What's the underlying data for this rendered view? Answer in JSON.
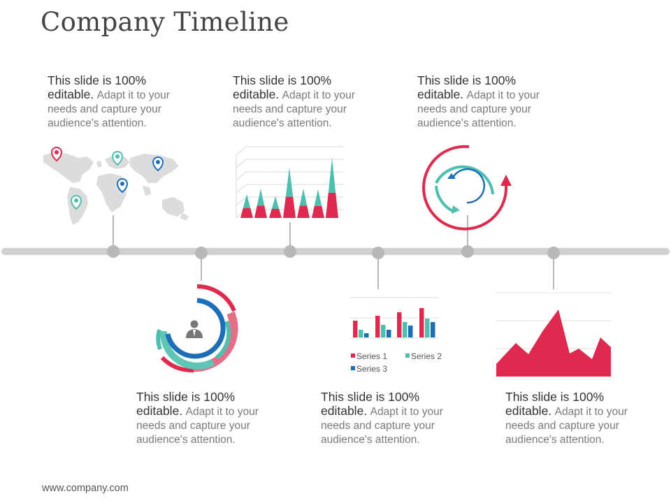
{
  "title": "Company Timeline",
  "footer": "www.company.com",
  "blocks": [
    {
      "head": "This slide is 100%",
      "bold": "editable.",
      "lead": "Adapt it to your",
      "line3": "needs and capture your",
      "line4": "audience's attention."
    },
    {
      "head": "This slide is 100%",
      "bold": "editable.",
      "lead": "Adapt it to your",
      "line3": "needs and capture your",
      "line4": "audience's attention."
    },
    {
      "head": "This slide is 100%",
      "bold": "editable.",
      "lead": "Adapt it to your",
      "line3": "needs and capture your",
      "line4": "audience's attention."
    },
    {
      "head": "This slide is 100%",
      "bold": "editable.",
      "lead": "Adapt it to your",
      "line3": "needs and capture your",
      "line4": "audience's attention."
    },
    {
      "head": "This slide is 100%",
      "bold": "editable.",
      "lead": "Adapt it to your",
      "line3": "needs and capture your",
      "line4": "audience's attention."
    },
    {
      "head": "This slide is 100%",
      "bold": "editable.",
      "lead": "Adapt it to your",
      "line3": "needs and capture your",
      "line4": "audience's attention."
    }
  ],
  "colors": {
    "red": "#e0294e",
    "teal": "#4dbfae",
    "blue": "#1b6fb8",
    "pink": "#e56f86",
    "gray": "#c8c8c8",
    "dark_gray": "#b8b8b8",
    "map": "#dcdcdc"
  },
  "icons": [
    "map-pin-icon",
    "refresh-cycle-icon",
    "user-icon"
  ],
  "legend": {
    "series1": "Series 1",
    "series2": "Series 2",
    "series3": "Series 3"
  }
}
